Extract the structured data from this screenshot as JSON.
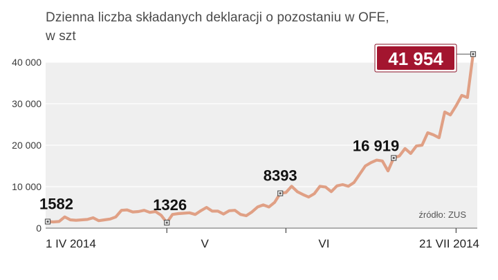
{
  "title_line1": "Dzienna liczba składanych deklaracji o pozostaniu w OFE,",
  "title_line2": "w szt",
  "source": "źródło: ZUS",
  "colors": {
    "line": "#e0a085",
    "plot_bg": "#efefef",
    "callout": "#a3152f",
    "marker": "#555555"
  },
  "chart_data": {
    "type": "line",
    "title": "Dzienna liczba składanych deklaracji o pozostaniu w OFE, w szt",
    "xlabel": "",
    "ylabel": "",
    "ylim": [
      0,
      42000
    ],
    "y_ticks": [
      0,
      10000,
      20000,
      30000,
      40000
    ],
    "y_tick_labels": [
      "0",
      "10 000",
      "20 000",
      "30 000",
      "40 000"
    ],
    "x_tick_labels": [
      {
        "i": 0,
        "label": "1 IV 2014"
      },
      {
        "i": 21,
        "label": "V"
      },
      {
        "i": 42,
        "label": "VI"
      },
      {
        "i": 72,
        "label": "21 VII 2014"
      }
    ],
    "grid": true,
    "series": [
      {
        "values": [
          1582,
          1500,
          1600,
          2700,
          2000,
          1900,
          2000,
          2100,
          2500,
          1800,
          2000,
          2200,
          2700,
          4300,
          4400,
          3900,
          4000,
          4300,
          3800,
          4000,
          3100,
          1326,
          3300,
          3500,
          3600,
          3700,
          3300,
          4200,
          5000,
          4100,
          4100,
          3400,
          4200,
          4300,
          3300,
          3000,
          3900,
          5100,
          5600,
          5100,
          6200,
          8393,
          8600,
          10100,
          8800,
          8100,
          7500,
          8300,
          10100,
          9900,
          8800,
          10200,
          10500,
          10100,
          11000,
          13000,
          15000,
          15800,
          16400,
          16200,
          13800,
          16919,
          17400,
          19200,
          18000,
          19800,
          20000,
          23000,
          22500,
          21800,
          28000,
          27300,
          29500,
          32000,
          31500,
          41954
        ]
      }
    ],
    "annotations": [
      {
        "i": 0,
        "text": "1582"
      },
      {
        "i": 21,
        "text": "1326"
      },
      {
        "i": 41,
        "text": "8393"
      },
      {
        "i": 61,
        "text": "16 919"
      },
      {
        "i": 75,
        "text": "41 954"
      }
    ]
  }
}
